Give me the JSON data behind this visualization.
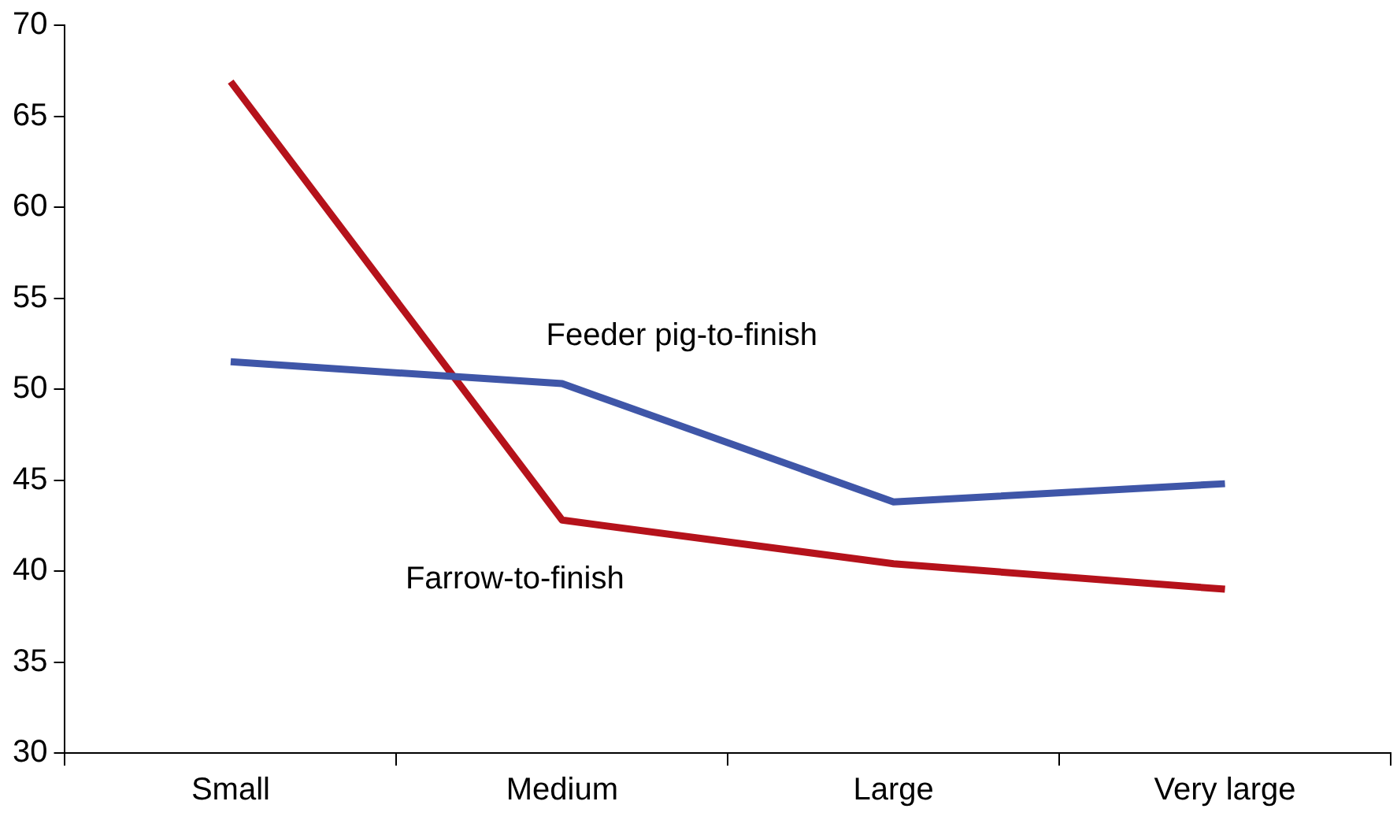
{
  "chart_data": {
    "type": "line",
    "categories": [
      "Small",
      "Medium",
      "Large",
      "Very large"
    ],
    "series": [
      {
        "name": "Feeder pig-to-finish",
        "color": "#3f56a8",
        "values": [
          51.5,
          50.3,
          43.8,
          44.8
        ]
      },
      {
        "name": "Farrow-to-finish",
        "color": "#b5121b",
        "values": [
          66.9,
          42.8,
          40.4,
          39.0
        ]
      }
    ],
    "ylim": [
      30,
      70
    ],
    "yticks": [
      30,
      35,
      40,
      45,
      50,
      55,
      60,
      65,
      70
    ],
    "grid": false,
    "legend": false,
    "marker": "none",
    "line_style": "solid"
  }
}
